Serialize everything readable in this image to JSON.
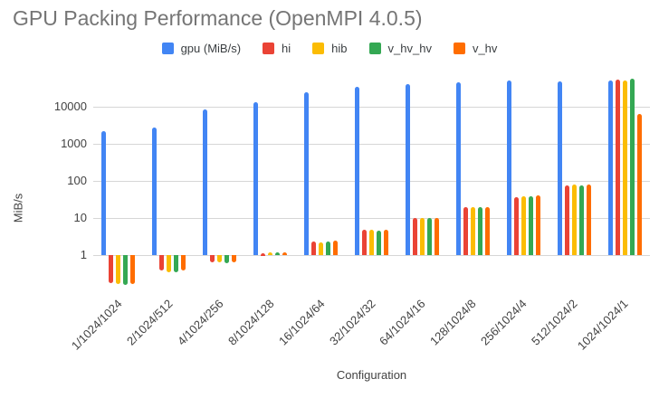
{
  "title": "GPU Packing Performance (OpenMPI 4.0.5)",
  "colors": {
    "title_text": "#757575",
    "axis_text": "#424242",
    "gridline": "#d6d6d6",
    "background": "#ffffff"
  },
  "chart_data": {
    "type": "bar",
    "scale": "log",
    "title": "GPU Packing Performance (OpenMPI 4.0.5)",
    "xlabel": "Configuration",
    "ylabel": "MiB/s",
    "yticks": [
      1,
      10,
      100,
      1000,
      10000
    ],
    "baseline": 1,
    "grid": true,
    "legend_position": "top",
    "categories": [
      "1/1024/1024",
      "2/1024/512",
      "4/1024/256",
      "8/1024/128",
      "16/1024/64",
      "32/1024/32",
      "64/1024/16",
      "128/1024/8",
      "256/1024/4",
      "512/1024/2",
      "1024/1024/1"
    ],
    "series": [
      {
        "name": "gpu (MiB/s)",
        "color": "#4285F4",
        "values": [
          2200,
          2700,
          8500,
          13000,
          24000,
          34000,
          41000,
          45000,
          50000,
          47000,
          52000
        ]
      },
      {
        "name": "hi",
        "color": "#EA4335",
        "values": [
          0.18,
          0.38,
          0.65,
          1.15,
          2.3,
          4.8,
          10,
          20,
          36,
          74,
          54000
        ]
      },
      {
        "name": "hib",
        "color": "#FBBC04",
        "values": [
          0.17,
          0.35,
          0.63,
          1.2,
          2.2,
          4.7,
          10,
          20,
          38,
          80,
          50000
        ]
      },
      {
        "name": "v_hv_hv",
        "color": "#34A853",
        "values": [
          0.16,
          0.34,
          0.62,
          1.2,
          2.3,
          4.6,
          9.8,
          20,
          38,
          76,
          56000
        ]
      },
      {
        "name": "v_hv",
        "color": "#FF6D00",
        "values": [
          0.17,
          0.38,
          0.64,
          1.2,
          2.4,
          4.8,
          10,
          20,
          40,
          78,
          6500
        ]
      }
    ]
  }
}
